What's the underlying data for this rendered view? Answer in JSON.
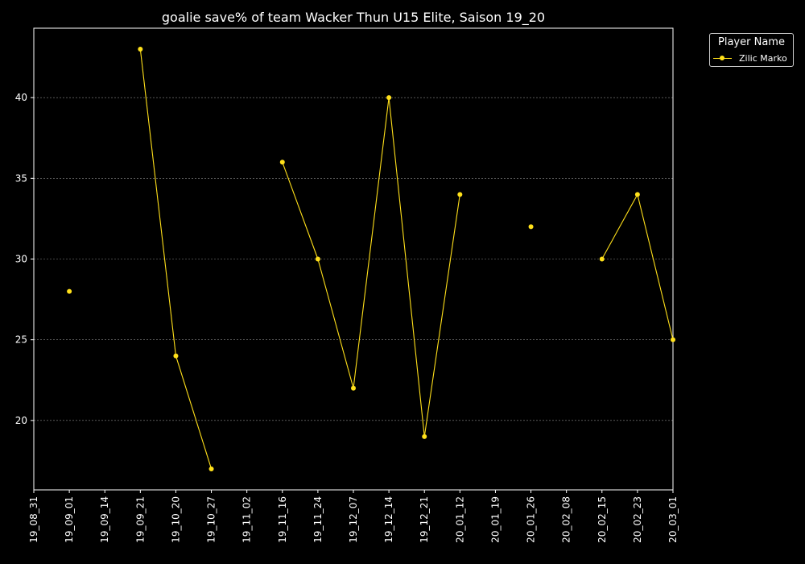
{
  "chart_data": {
    "type": "line",
    "title": "goalie save% of team Wacker Thun U15 Elite, Saison 19_20",
    "xlabel": "",
    "ylabel": "",
    "categories": [
      "19_08_31",
      "19_09_01",
      "19_09_14",
      "19_09_21",
      "19_10_20",
      "19_10_27",
      "19_11_02",
      "19_11_16",
      "19_11_24",
      "19_12_07",
      "19_12_14",
      "19_12_21",
      "20_01_12",
      "20_01_19",
      "20_01_26",
      "20_02_08",
      "20_02_15",
      "20_02_23",
      "20_03_01"
    ],
    "series": [
      {
        "name": "Zilic Marko",
        "color": "#ffe01a",
        "values": [
          null,
          28,
          null,
          43,
          24,
          17,
          null,
          36,
          30,
          22,
          40,
          19,
          34,
          null,
          32,
          null,
          30,
          34,
          25
        ]
      }
    ],
    "ylim": [
      15.7,
      44.3
    ],
    "yticks": [
      20,
      25,
      30,
      35,
      40
    ],
    "grid": "horizontal dashed",
    "legend_title": "Player Name",
    "legend_position": "outside-top-right",
    "background": "#000000",
    "axis_color": "#ffffff"
  }
}
